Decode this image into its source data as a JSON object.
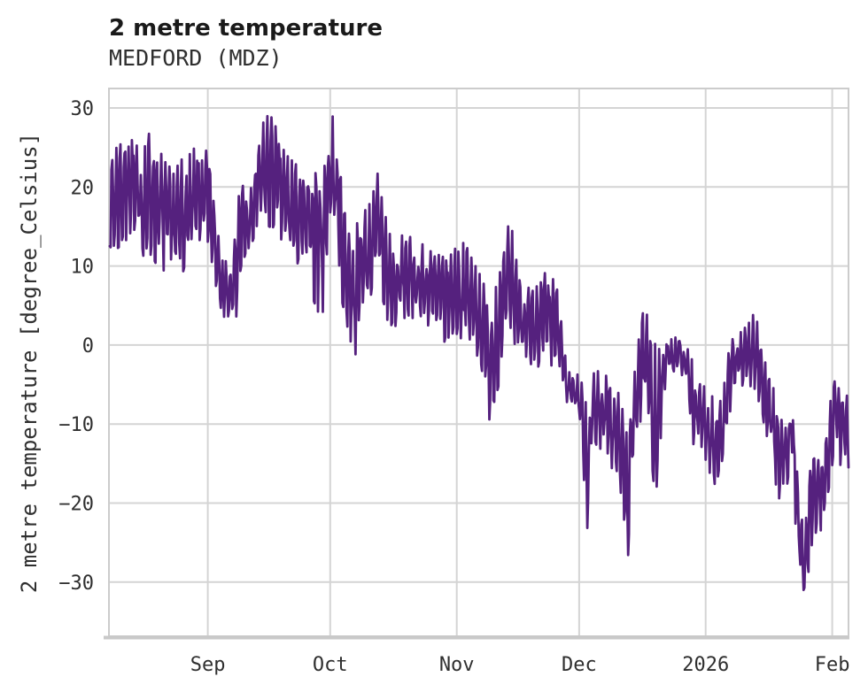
{
  "chart_data": {
    "type": "line",
    "title": "2 metre temperature",
    "subtitle": "MEDFORD (MDZ)",
    "xlabel": "",
    "ylabel": "2 metre temperature [degree_Celsius]",
    "grid": true,
    "legend_position": "none",
    "line_color": "#55217e",
    "grid_color": "#d4d4d4",
    "spine_color": "#cccccc",
    "bottom_spine_color": "#c9c9c9",
    "text_color": "#2f2f2f",
    "ylim": [
      -36.85,
      32.46
    ],
    "y_ticks": [
      {
        "value": 30,
        "label": "30"
      },
      {
        "value": 20,
        "label": "20"
      },
      {
        "value": 10,
        "label": "10"
      },
      {
        "value": 0,
        "label": "0"
      },
      {
        "value": -10,
        "label": "−10"
      },
      {
        "value": -20,
        "label": "−20"
      },
      {
        "value": -30,
        "label": "−30"
      }
    ],
    "x_axis_days_total": 181,
    "x_ticks": [
      {
        "label": "Sep",
        "day": 24
      },
      {
        "label": "Oct",
        "day": 54
      },
      {
        "label": "Nov",
        "day": 85
      },
      {
        "label": "Dec",
        "day": 115
      },
      {
        "label": "2026",
        "day": 146
      },
      {
        "label": "Feb",
        "day": 177
      }
    ],
    "series_name": "2 metre temperature",
    "station": "MEDFORD (MDZ)",
    "sampling_note": "hourly-like trace read off plot as daily [day, min_degC, max_degC] envelope; day 0 = left plot edge (~1 month before Sep tick)",
    "samples_per_day": 5,
    "noise_seed": 7,
    "daily_envelope": [
      [
        0,
        13,
        21
      ],
      [
        1,
        12.5,
        24
      ],
      [
        2,
        13,
        25
      ],
      [
        4,
        14,
        26
      ],
      [
        5,
        15,
        29.4
      ],
      [
        6,
        13.5,
        25
      ],
      [
        8,
        12,
        23.5
      ],
      [
        10,
        12,
        26.5
      ],
      [
        12,
        10.5,
        24
      ],
      [
        14,
        10,
        22
      ],
      [
        16,
        9.5,
        21.5
      ],
      [
        18,
        10,
        23
      ],
      [
        20,
        11,
        23.5
      ],
      [
        21,
        12,
        24.5
      ],
      [
        23,
        13,
        24
      ],
      [
        24,
        11.5,
        23.8
      ],
      [
        26,
        7,
        17
      ],
      [
        28,
        4,
        11
      ],
      [
        30,
        3.2,
        9
      ],
      [
        31,
        3.5,
        16
      ],
      [
        32,
        10,
        20.5
      ],
      [
        34,
        12,
        17.5
      ],
      [
        36,
        14,
        24
      ],
      [
        38,
        16,
        28.3
      ],
      [
        40,
        15.5,
        28
      ],
      [
        42,
        14,
        24.5
      ],
      [
        44,
        12,
        23
      ],
      [
        46,
        11,
        22
      ],
      [
        48,
        9,
        21
      ],
      [
        50,
        6.5,
        22.5
      ],
      [
        52,
        4,
        22
      ],
      [
        54,
        16.5,
        28.3
      ],
      [
        55,
        14,
        28
      ],
      [
        56,
        11,
        25
      ],
      [
        57,
        6,
        17.5
      ],
      [
        58,
        3.5,
        15
      ],
      [
        60,
        -1,
        14
      ],
      [
        62,
        6,
        16
      ],
      [
        64,
        7,
        17.5
      ],
      [
        66,
        9,
        21.8
      ],
      [
        68,
        3,
        14
      ],
      [
        70,
        1.5,
        12
      ],
      [
        72,
        4,
        13.6
      ],
      [
        74,
        4,
        13
      ],
      [
        76,
        3.5,
        12.5
      ],
      [
        78,
        3,
        11.5
      ],
      [
        80,
        2,
        11
      ],
      [
        82,
        1,
        10.5
      ],
      [
        84,
        2,
        11
      ],
      [
        85,
        2,
        12
      ],
      [
        87,
        1,
        12.3
      ],
      [
        89,
        0.5,
        10
      ],
      [
        91,
        -2,
        8
      ],
      [
        93,
        -8.6,
        5
      ],
      [
        95,
        -5,
        7
      ],
      [
        97,
        0,
        12
      ],
      [
        98,
        2,
        15.7
      ],
      [
        100,
        0,
        9
      ],
      [
        102,
        -1,
        7
      ],
      [
        104,
        -5.7,
        6
      ],
      [
        106,
        -1,
        8.5
      ],
      [
        108,
        -2,
        8.5
      ],
      [
        110,
        -2,
        6
      ],
      [
        112,
        -7,
        -3.5
      ],
      [
        114,
        -7.5,
        -4
      ],
      [
        115,
        -9,
        -4
      ],
      [
        116,
        -15,
        -6
      ],
      [
        117,
        -22.4,
        -9
      ],
      [
        118,
        -14,
        -5
      ],
      [
        119,
        -12,
        -3.5
      ],
      [
        121,
        -13,
        -4
      ],
      [
        123,
        -15,
        -5.5
      ],
      [
        125,
        -18,
        -7
      ],
      [
        127,
        -25.8,
        -13
      ],
      [
        128,
        -16,
        -8
      ],
      [
        129,
        -10,
        1
      ],
      [
        131,
        -8,
        3.9
      ],
      [
        133,
        -16,
        1
      ],
      [
        134,
        -17,
        -2
      ],
      [
        136,
        -6,
        0.5
      ],
      [
        137,
        -4,
        0.9
      ],
      [
        139,
        -2.5,
        0.7
      ],
      [
        141,
        -5,
        0.5
      ],
      [
        143,
        -12,
        -3
      ],
      [
        145,
        -13,
        -6
      ],
      [
        146,
        -14,
        -5.5
      ],
      [
        148,
        -17.2,
        -7
      ],
      [
        150,
        -15,
        -7.5
      ],
      [
        152,
        -8,
        0
      ],
      [
        154,
        -5,
        1
      ],
      [
        156,
        -4.5,
        2
      ],
      [
        158,
        -5,
        3.9
      ],
      [
        160,
        -9,
        -1
      ],
      [
        162,
        -13,
        -4
      ],
      [
        164,
        -19.8,
        -10
      ],
      [
        166,
        -17,
        -8
      ],
      [
        167,
        -13,
        -7.9
      ],
      [
        168,
        -22,
        -12
      ],
      [
        169,
        -30.6,
        -18
      ],
      [
        170,
        -33.4,
        -25.8
      ],
      [
        171,
        -29,
        -20
      ],
      [
        172,
        -24.7,
        -14.2
      ],
      [
        174,
        -23.2,
        -13.5
      ],
      [
        176,
        -20,
        -12
      ],
      [
        177,
        -14.6,
        -4.7
      ],
      [
        178,
        -12,
        -5
      ],
      [
        179,
        -14.6,
        -5.2
      ],
      [
        180,
        -13,
        -6
      ],
      [
        181,
        -15,
        -7
      ]
    ]
  }
}
